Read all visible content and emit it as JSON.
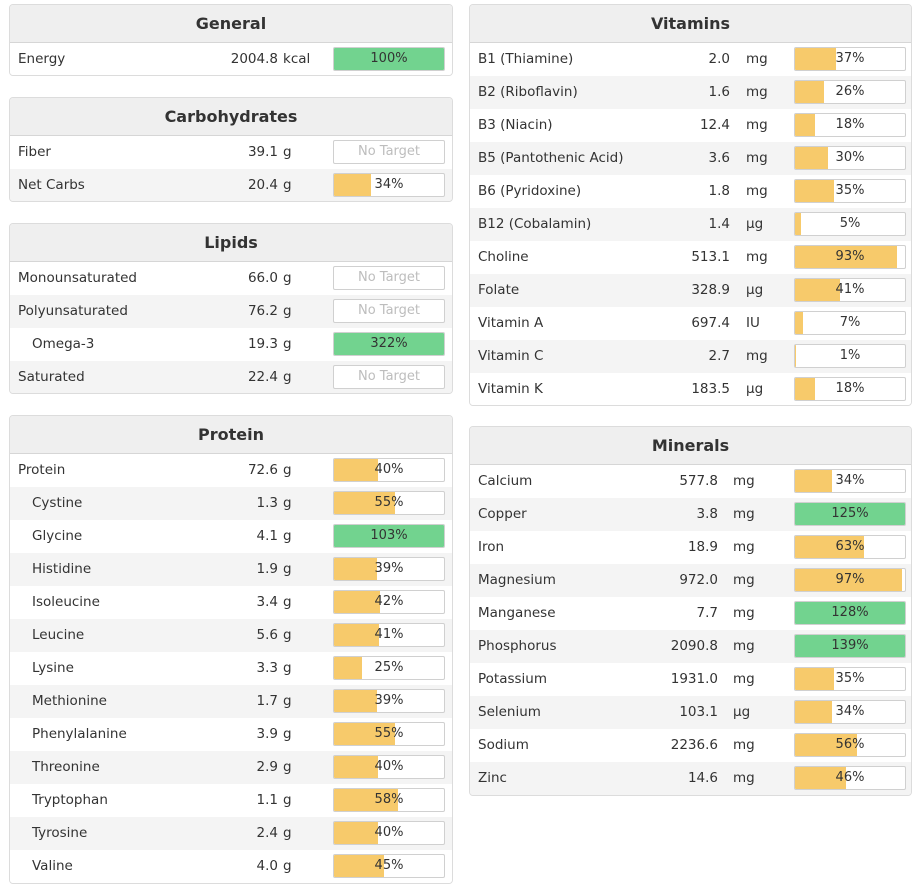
{
  "colors": {
    "green": "#72d38f",
    "orange": "#f7ca6b"
  },
  "general": {
    "title": "General",
    "rows": [
      {
        "name": "Energy",
        "amount": "2004.8",
        "unit": "kcal",
        "pct": "100%",
        "pct_value": 100,
        "color": "green"
      }
    ]
  },
  "carbs": {
    "title": "Carbohydrates",
    "rows": [
      {
        "name": "Fiber",
        "amount": "39.1",
        "unit": "g",
        "pct": "No Target",
        "pct_value": 0,
        "color": "none"
      },
      {
        "name": "Net Carbs",
        "amount": "20.4",
        "unit": "g",
        "pct": "34%",
        "pct_value": 34,
        "color": "orange"
      }
    ]
  },
  "lipids": {
    "title": "Lipids",
    "rows": [
      {
        "name": "Monounsaturated",
        "amount": "66.0",
        "unit": "g",
        "pct": "No Target",
        "pct_value": 0,
        "color": "none"
      },
      {
        "name": "Polyunsaturated",
        "amount": "76.2",
        "unit": "g",
        "pct": "No Target",
        "pct_value": 0,
        "color": "none"
      },
      {
        "name": "Omega-3",
        "amount": "19.3",
        "unit": "g",
        "pct": "322%",
        "pct_value": 100,
        "color": "green",
        "sub": true
      },
      {
        "name": "Saturated",
        "amount": "22.4",
        "unit": "g",
        "pct": "No Target",
        "pct_value": 0,
        "color": "none"
      }
    ]
  },
  "protein": {
    "title": "Protein",
    "rows": [
      {
        "name": "Protein",
        "amount": "72.6",
        "unit": "g",
        "pct": "40%",
        "pct_value": 40,
        "color": "orange"
      },
      {
        "name": "Cystine",
        "amount": "1.3",
        "unit": "g",
        "pct": "55%",
        "pct_value": 55,
        "color": "orange",
        "sub": true
      },
      {
        "name": "Glycine",
        "amount": "4.1",
        "unit": "g",
        "pct": "103%",
        "pct_value": 100,
        "color": "green",
        "sub": true
      },
      {
        "name": "Histidine",
        "amount": "1.9",
        "unit": "g",
        "pct": "39%",
        "pct_value": 39,
        "color": "orange",
        "sub": true
      },
      {
        "name": "Isoleucine",
        "amount": "3.4",
        "unit": "g",
        "pct": "42%",
        "pct_value": 42,
        "color": "orange",
        "sub": true
      },
      {
        "name": "Leucine",
        "amount": "5.6",
        "unit": "g",
        "pct": "41%",
        "pct_value": 41,
        "color": "orange",
        "sub": true
      },
      {
        "name": "Lysine",
        "amount": "3.3",
        "unit": "g",
        "pct": "25%",
        "pct_value": 25,
        "color": "orange",
        "sub": true
      },
      {
        "name": "Methionine",
        "amount": "1.7",
        "unit": "g",
        "pct": "39%",
        "pct_value": 39,
        "color": "orange",
        "sub": true
      },
      {
        "name": "Phenylalanine",
        "amount": "3.9",
        "unit": "g",
        "pct": "55%",
        "pct_value": 55,
        "color": "orange",
        "sub": true
      },
      {
        "name": "Threonine",
        "amount": "2.9",
        "unit": "g",
        "pct": "40%",
        "pct_value": 40,
        "color": "orange",
        "sub": true
      },
      {
        "name": "Tryptophan",
        "amount": "1.1",
        "unit": "g",
        "pct": "58%",
        "pct_value": 58,
        "color": "orange",
        "sub": true
      },
      {
        "name": "Tyrosine",
        "amount": "2.4",
        "unit": "g",
        "pct": "40%",
        "pct_value": 40,
        "color": "orange",
        "sub": true
      },
      {
        "name": "Valine",
        "amount": "4.0",
        "unit": "g",
        "pct": "45%",
        "pct_value": 45,
        "color": "orange",
        "sub": true
      }
    ]
  },
  "vitamins": {
    "title": "Vitamins",
    "rows": [
      {
        "name": "B1 (Thiamine)",
        "amount": "2.0",
        "unit": "mg",
        "pct": "37%",
        "pct_value": 37,
        "color": "orange"
      },
      {
        "name": "B2 (Riboflavin)",
        "amount": "1.6",
        "unit": "mg",
        "pct": "26%",
        "pct_value": 26,
        "color": "orange"
      },
      {
        "name": "B3 (Niacin)",
        "amount": "12.4",
        "unit": "mg",
        "pct": "18%",
        "pct_value": 18,
        "color": "orange"
      },
      {
        "name": "B5 (Pantothenic Acid)",
        "amount": "3.6",
        "unit": "mg",
        "pct": "30%",
        "pct_value": 30,
        "color": "orange"
      },
      {
        "name": "B6 (Pyridoxine)",
        "amount": "1.8",
        "unit": "mg",
        "pct": "35%",
        "pct_value": 35,
        "color": "orange"
      },
      {
        "name": "B12 (Cobalamin)",
        "amount": "1.4",
        "unit": "µg",
        "pct": "5%",
        "pct_value": 5,
        "color": "orange"
      },
      {
        "name": "Choline",
        "amount": "513.1",
        "unit": "mg",
        "pct": "93%",
        "pct_value": 93,
        "color": "orange"
      },
      {
        "name": "Folate",
        "amount": "328.9",
        "unit": "µg",
        "pct": "41%",
        "pct_value": 41,
        "color": "orange"
      },
      {
        "name": "Vitamin A",
        "amount": "697.4",
        "unit": "IU",
        "pct": "7%",
        "pct_value": 7,
        "color": "orange"
      },
      {
        "name": "Vitamin C",
        "amount": "2.7",
        "unit": "mg",
        "pct": "1%",
        "pct_value": 1,
        "color": "orange"
      },
      {
        "name": "Vitamin K",
        "amount": "183.5",
        "unit": "µg",
        "pct": "18%",
        "pct_value": 18,
        "color": "orange"
      }
    ]
  },
  "minerals": {
    "title": "Minerals",
    "rows": [
      {
        "name": "Calcium",
        "amount": "577.8",
        "unit": "mg",
        "pct": "34%",
        "pct_value": 34,
        "color": "orange"
      },
      {
        "name": "Copper",
        "amount": "3.8",
        "unit": "mg",
        "pct": "125%",
        "pct_value": 100,
        "color": "green"
      },
      {
        "name": "Iron",
        "amount": "18.9",
        "unit": "mg",
        "pct": "63%",
        "pct_value": 63,
        "color": "orange"
      },
      {
        "name": "Magnesium",
        "amount": "972.0",
        "unit": "mg",
        "pct": "97%",
        "pct_value": 97,
        "color": "orange"
      },
      {
        "name": "Manganese",
        "amount": "7.7",
        "unit": "mg",
        "pct": "128%",
        "pct_value": 100,
        "color": "green"
      },
      {
        "name": "Phosphorus",
        "amount": "2090.8",
        "unit": "mg",
        "pct": "139%",
        "pct_value": 100,
        "color": "green"
      },
      {
        "name": "Potassium",
        "amount": "1931.0",
        "unit": "mg",
        "pct": "35%",
        "pct_value": 35,
        "color": "orange"
      },
      {
        "name": "Selenium",
        "amount": "103.1",
        "unit": "µg",
        "pct": "34%",
        "pct_value": 34,
        "color": "orange"
      },
      {
        "name": "Sodium",
        "amount": "2236.6",
        "unit": "mg",
        "pct": "56%",
        "pct_value": 56,
        "color": "orange"
      },
      {
        "name": "Zinc",
        "amount": "14.6",
        "unit": "mg",
        "pct": "46%",
        "pct_value": 46,
        "color": "orange"
      }
    ]
  }
}
